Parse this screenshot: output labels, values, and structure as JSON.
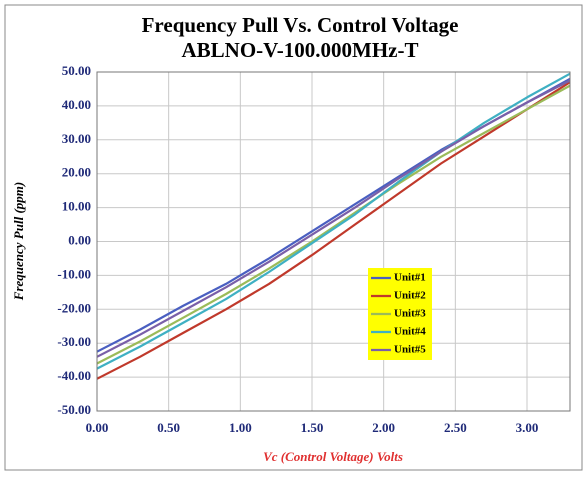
{
  "chart_data": {
    "type": "line",
    "title": "Frequency Pull Vs. Control Voltage",
    "subtitle": "ABLNO-V-100.000MHz-T",
    "x_label": "Vc (Control Voltage) Volts",
    "y_label": "Frequency Pull (ppm)",
    "x": [
      0,
      0.3,
      0.6,
      0.9,
      1.2,
      1.5,
      1.8,
      2.1,
      2.4,
      2.7,
      3.0,
      3.3
    ],
    "series": [
      {
        "name": "Unit#1",
        "color": "#4a5fc1",
        "values": [
          -32.5,
          -26,
          -19,
          -12.5,
          -5,
          3,
          11,
          19,
          27,
          34,
          41,
          48
        ]
      },
      {
        "name": "Unit#2",
        "color": "#c0392b",
        "values": [
          -40.5,
          -34,
          -27,
          -20,
          -12.5,
          -4,
          5,
          14,
          23,
          31,
          39,
          47
        ]
      },
      {
        "name": "Unit#3",
        "color": "#9bbb59",
        "values": [
          -36,
          -29.5,
          -22.5,
          -15.5,
          -8,
          0,
          8.5,
          17,
          25,
          32,
          39,
          46
        ]
      },
      {
        "name": "Unit#4",
        "color": "#3fb0c3",
        "values": [
          -37.5,
          -31,
          -24,
          -17,
          -9,
          -0.5,
          8,
          17.5,
          26.5,
          35,
          42.5,
          49.5
        ]
      },
      {
        "name": "Unit#5",
        "color": "#7a5fa8",
        "values": [
          -34,
          -27.5,
          -20.5,
          -13.5,
          -6,
          2,
          10,
          18.5,
          26.5,
          34,
          41,
          47.5
        ]
      }
    ],
    "xlim": [
      0,
      3.3
    ],
    "ylim": [
      -50,
      50
    ],
    "xticks": [
      {
        "value": 0,
        "label": "0.00"
      },
      {
        "value": 0.5,
        "label": "0.50"
      },
      {
        "value": 1,
        "label": "1.00"
      },
      {
        "value": 1.5,
        "label": "1.50"
      },
      {
        "value": 2,
        "label": "2.00"
      },
      {
        "value": 2.5,
        "label": "2.50"
      },
      {
        "value": 3,
        "label": "3.00"
      }
    ],
    "yticks": [
      {
        "value": -50,
        "label": "-50.00"
      },
      {
        "value": -40,
        "label": "-40.00"
      },
      {
        "value": -30,
        "label": "-30.00"
      },
      {
        "value": -20,
        "label": "-20.00"
      },
      {
        "value": -10,
        "label": "-10.00"
      },
      {
        "value": 0,
        "label": "0.00"
      },
      {
        "value": 10,
        "label": "10.00"
      },
      {
        "value": 20,
        "label": "20.00"
      },
      {
        "value": 30,
        "label": "30.00"
      },
      {
        "value": 40,
        "label": "40.00"
      },
      {
        "value": 50,
        "label": "50.00"
      }
    ],
    "grid": true,
    "legend_background": "#ffff00"
  }
}
